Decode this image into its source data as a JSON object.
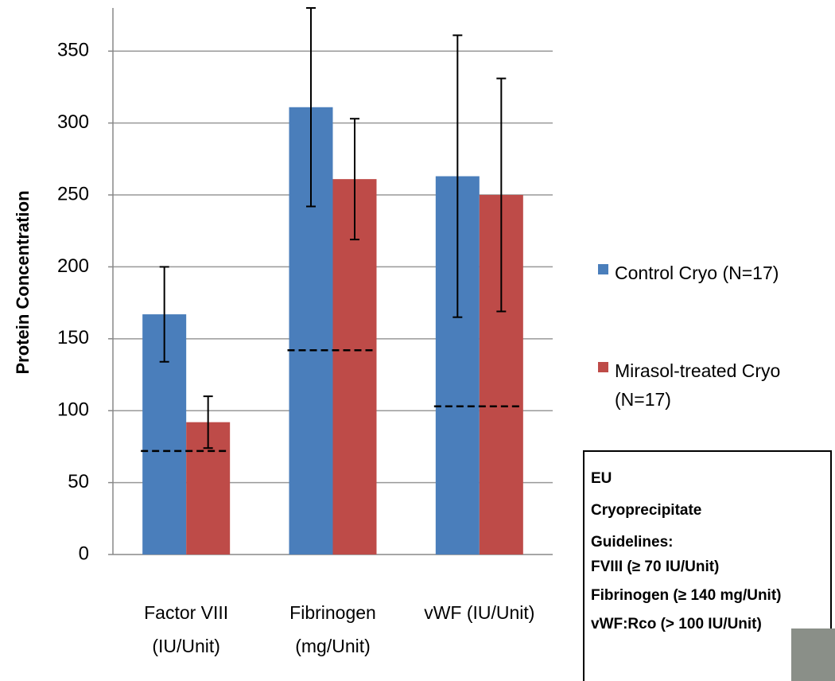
{
  "chart_data": {
    "type": "bar",
    "y_label": "Protein Concentration",
    "categories": [
      [
        "Factor VIII",
        "(IU/Unit)"
      ],
      [
        "Fibrinogen",
        "(mg/Unit)"
      ],
      [
        "vWF (IU/Unit)"
      ]
    ],
    "series": [
      {
        "name": "Control Cryo (N=17)",
        "color": "#4a7ebb",
        "values": [
          167,
          311,
          263
        ],
        "errors": [
          33,
          69,
          98
        ]
      },
      {
        "name": "Mirasol-treated Cryo (N=17)",
        "color": "#be4b48",
        "values": [
          92,
          261,
          250
        ],
        "errors": [
          18,
          42,
          81
        ]
      }
    ],
    "thresholds": [
      72,
      142,
      103
    ],
    "ylim": [
      0,
      380
    ],
    "yticks": [
      0,
      50,
      100,
      150,
      200,
      250,
      300,
      350
    ],
    "grid": true,
    "legend": "right",
    "guidelines": {
      "title": "EU Cryoprecipitate Guidelines:",
      "items": [
        "FVIII (≥ 70 IU/Unit)",
        "Fibrinogen (≥ 140 mg/Unit)",
        "vWF:Rco (> 100 IU/Unit)"
      ]
    }
  }
}
